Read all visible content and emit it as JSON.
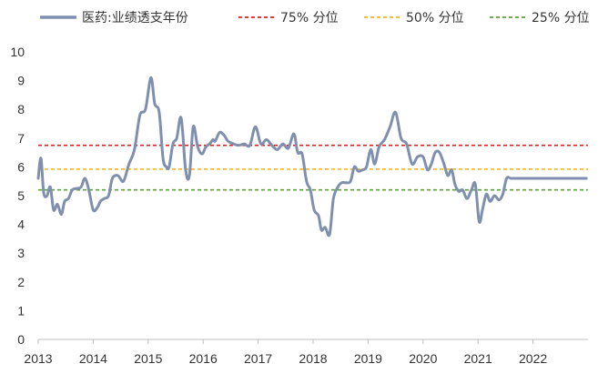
{
  "chart_data": {
    "type": "line",
    "title": "",
    "xlabel": "",
    "ylabel": "",
    "ylim": [
      0,
      10
    ],
    "xlim": [
      2013.0,
      2023.0
    ],
    "grid": false,
    "legend_position": "top",
    "y_ticks": [
      "0",
      "1",
      "2",
      "3",
      "4",
      "5",
      "6",
      "7",
      "8",
      "9",
      "10"
    ],
    "x_ticks": [
      "2013",
      "2014",
      "2015",
      "2016",
      "2017",
      "2018",
      "2019",
      "2020",
      "2021",
      "2022"
    ],
    "series": [
      {
        "name": "医药:业绩透支年份",
        "color": "#7f8fae",
        "style": "solid",
        "x": [
          2013.0,
          2013.05,
          2013.1,
          2013.16,
          2013.22,
          2013.28,
          2013.35,
          2013.42,
          2013.48,
          2013.55,
          2013.62,
          2013.7,
          2013.78,
          2013.85,
          2013.92,
          2014.0,
          2014.08,
          2014.13,
          2014.2,
          2014.28,
          2014.35,
          2014.45,
          2014.55,
          2014.65,
          2014.75,
          2014.85,
          2014.95,
          2015.05,
          2015.12,
          2015.2,
          2015.27,
          2015.33,
          2015.38,
          2015.45,
          2015.52,
          2015.6,
          2015.68,
          2015.75,
          2015.82,
          2015.9,
          2015.98,
          2016.05,
          2016.12,
          2016.18,
          2016.22,
          2016.3,
          2016.38,
          2016.45,
          2016.55,
          2016.65,
          2016.75,
          2016.85,
          2016.95,
          2017.05,
          2017.15,
          2017.25,
          2017.35,
          2017.45,
          2017.55,
          2017.65,
          2017.72,
          2017.8,
          2017.88,
          2017.95,
          2018.02,
          2018.1,
          2018.15,
          2018.22,
          2018.3,
          2018.37,
          2018.45,
          2018.52,
          2018.6,
          2018.68,
          2018.75,
          2018.82,
          2018.9,
          2018.97,
          2019.05,
          2019.12,
          2019.2,
          2019.3,
          2019.4,
          2019.5,
          2019.6,
          2019.7,
          2019.8,
          2019.9,
          2020.0,
          2020.08,
          2020.15,
          2020.22,
          2020.3,
          2020.38,
          2020.45,
          2020.52,
          2020.58,
          2020.65,
          2020.72,
          2020.8,
          2020.88,
          2020.95,
          2021.02,
          2021.08,
          2021.15,
          2021.22,
          2021.3,
          2021.38,
          2021.45,
          2021.52,
          2021.6,
          2021.68,
          2021.75,
          2021.82,
          2021.9,
          2021.98,
          2022.05,
          2022.12,
          2022.2,
          2022.28,
          2022.35,
          2022.42,
          2022.5,
          2022.58,
          2022.65,
          2022.72,
          2022.78,
          2022.85,
          2022.92,
          2022.97
        ],
        "values": [
          5.6,
          6.3,
          5.1,
          5.0,
          5.3,
          4.5,
          4.7,
          4.35,
          4.8,
          4.9,
          5.2,
          5.25,
          5.3,
          5.6,
          5.2,
          4.5,
          4.6,
          4.8,
          4.9,
          5.0,
          5.6,
          5.7,
          5.5,
          6.1,
          6.6,
          7.8,
          8.0,
          9.1,
          8.2,
          7.9,
          6.3,
          6.0,
          6.0,
          6.8,
          7.0,
          7.7,
          5.9,
          5.7,
          7.4,
          6.7,
          6.45,
          6.7,
          6.8,
          6.95,
          6.9,
          7.2,
          7.1,
          6.9,
          6.8,
          6.75,
          6.8,
          6.75,
          7.4,
          6.8,
          6.95,
          6.75,
          6.6,
          6.8,
          6.65,
          7.15,
          6.5,
          6.45,
          5.5,
          5.2,
          4.5,
          4.3,
          3.8,
          3.9,
          3.65,
          4.9,
          5.3,
          5.45,
          5.45,
          5.5,
          6.0,
          5.85,
          5.9,
          6.0,
          6.6,
          6.1,
          6.7,
          6.95,
          7.4,
          7.9,
          7.0,
          6.8,
          6.1,
          6.35,
          6.35,
          5.9,
          6.1,
          6.5,
          6.5,
          6.1,
          5.7,
          5.9,
          5.4,
          5.15,
          5.2,
          4.9,
          5.2,
          5.4,
          4.1,
          4.5,
          5.05,
          4.8,
          5.0,
          4.85,
          5.05,
          5.6,
          5.6,
          5.6,
          5.6,
          5.6,
          5.6,
          5.6,
          5.6,
          5.6,
          5.6,
          5.6,
          5.6,
          5.6,
          5.6,
          5.6,
          5.6,
          5.6,
          5.6,
          5.6,
          5.6,
          5.6
        ]
      },
      {
        "name": "75% 分位",
        "color": "#e0201c",
        "style": "dashed",
        "x": [
          2013.0,
          2023.0
        ],
        "values": [
          6.75,
          6.75
        ]
      },
      {
        "name": "50% 分位",
        "color": "#f4b81c",
        "style": "dashed",
        "x": [
          2013.0,
          2023.0
        ],
        "values": [
          5.92,
          5.92
        ]
      },
      {
        "name": "25% 分位",
        "color": "#5ba335",
        "style": "dashed",
        "x": [
          2013.0,
          2023.0
        ],
        "values": [
          5.2,
          5.2
        ]
      }
    ]
  }
}
